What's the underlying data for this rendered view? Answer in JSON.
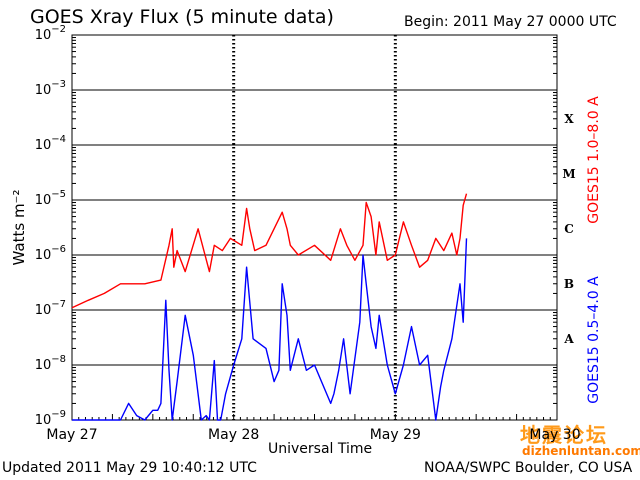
{
  "title": "GOES Xray Flux (5 minute data)",
  "begin": "Begin:  2011 May 27 0000 UTC",
  "updated": "Updated 2011 May 29 10:40:12 UTC",
  "credit": "NOAA/SWPC Boulder, CO USA",
  "watermark": {
    "chinese": "地震论坛",
    "url": "dizhenluntan.com"
  },
  "chart_data": {
    "type": "line",
    "title": "GOES Xray Flux (5 minute data)",
    "xlabel": "Universal Time",
    "ylabel": "Watts m⁻²",
    "y_scale": "log",
    "ylim": [
      1e-09,
      0.01
    ],
    "y_ticks": [
      {
        "value": 0.01,
        "base": "10",
        "exp": "−2"
      },
      {
        "value": 0.001,
        "base": "10",
        "exp": "−3"
      },
      {
        "value": 0.0001,
        "base": "10",
        "exp": "−4"
      },
      {
        "value": 1e-05,
        "base": "10",
        "exp": "−5"
      },
      {
        "value": 1e-06,
        "base": "10",
        "exp": "−6"
      },
      {
        "value": 1e-07,
        "base": "10",
        "exp": "−7"
      },
      {
        "value": 1e-08,
        "base": "10",
        "exp": "−8"
      },
      {
        "value": 1e-09,
        "base": "10",
        "exp": "−9"
      }
    ],
    "xlim_days": [
      0,
      3
    ],
    "x_ticks": [
      {
        "day": 0,
        "label": "May 27"
      },
      {
        "day": 1,
        "label": "May 28"
      },
      {
        "day": 2,
        "label": "May 29"
      },
      {
        "day": 3,
        "label": "May 30"
      }
    ],
    "flare_classes": [
      {
        "label": "X",
        "flux": 0.0003
      },
      {
        "label": "M",
        "flux": 3e-05
      },
      {
        "label": "C",
        "flux": 3e-06
      },
      {
        "label": "B",
        "flux": 3e-07
      },
      {
        "label": "A",
        "flux": 3e-08
      }
    ],
    "series": [
      {
        "name": "GOES15 1.0–8.0 A",
        "color": "#ff0000",
        "day": [
          0.0,
          0.1,
          0.2,
          0.3,
          0.45,
          0.55,
          0.6,
          0.62,
          0.63,
          0.65,
          0.7,
          0.78,
          0.85,
          0.88,
          0.93,
          0.98,
          1.05,
          1.08,
          1.1,
          1.13,
          1.2,
          1.3,
          1.33,
          1.35,
          1.4,
          1.5,
          1.6,
          1.66,
          1.7,
          1.75,
          1.8,
          1.82,
          1.85,
          1.88,
          1.9,
          1.95,
          2.0,
          2.05,
          2.1,
          2.15,
          2.2,
          2.25,
          2.3,
          2.35,
          2.38,
          2.4,
          2.42,
          2.44
        ],
        "flux": [
          1.1e-07,
          1.5e-07,
          2e-07,
          3e-07,
          3e-07,
          3.5e-07,
          1.5e-06,
          3e-06,
          6e-07,
          1.2e-06,
          5e-07,
          3e-06,
          5e-07,
          1.5e-06,
          1.2e-06,
          2e-06,
          1.5e-06,
          7e-06,
          3e-06,
          1.2e-06,
          1.5e-06,
          6e-06,
          3e-06,
          1.5e-06,
          1e-06,
          1.5e-06,
          8e-07,
          3e-06,
          1.5e-06,
          8e-07,
          1.5e-06,
          9e-06,
          5e-06,
          1e-06,
          4e-06,
          8e-07,
          1e-06,
          4e-06,
          1.5e-06,
          6e-07,
          8e-07,
          2e-06,
          1.2e-06,
          2.5e-06,
          1e-06,
          2e-06,
          8e-06,
          1.3e-05
        ]
      },
      {
        "name": "GOES15 0.5–4.0 A",
        "color": "#0000ff",
        "day": [
          0.0,
          0.3,
          0.35,
          0.4,
          0.45,
          0.5,
          0.53,
          0.55,
          0.58,
          0.6,
          0.62,
          0.65,
          0.7,
          0.75,
          0.8,
          0.83,
          0.85,
          0.88,
          0.9,
          0.92,
          0.95,
          1.0,
          1.05,
          1.08,
          1.12,
          1.2,
          1.25,
          1.28,
          1.3,
          1.33,
          1.35,
          1.4,
          1.45,
          1.5,
          1.6,
          1.62,
          1.65,
          1.68,
          1.72,
          1.78,
          1.8,
          1.82,
          1.85,
          1.88,
          1.9,
          1.95,
          2.0,
          2.05,
          2.1,
          2.15,
          2.2,
          2.25,
          2.28,
          2.3,
          2.35,
          2.4,
          2.42,
          2.44
        ],
        "flux": [
          1e-09,
          1e-09,
          2e-09,
          1.2e-09,
          1e-09,
          1.5e-09,
          1.5e-09,
          2e-09,
          1.5e-07,
          8e-09,
          1e-09,
          5e-09,
          8e-08,
          1.5e-08,
          1e-09,
          1.2e-09,
          1e-09,
          1.2e-08,
          1e-09,
          1e-09,
          3e-09,
          1e-08,
          3e-08,
          6e-07,
          3e-08,
          2e-08,
          5e-09,
          8e-09,
          3e-07,
          8e-08,
          8e-09,
          3e-08,
          8e-09,
          1e-08,
          2e-09,
          3e-09,
          8e-09,
          3e-08,
          3e-09,
          6e-08,
          1e-06,
          3e-07,
          5e-08,
          2e-08,
          8e-08,
          1e-08,
          3e-09,
          1e-08,
          5e-08,
          1e-08,
          1.5e-08,
          1e-09,
          4e-09,
          8e-09,
          3e-08,
          3e-07,
          6e-08,
          2e-06
        ]
      }
    ]
  }
}
